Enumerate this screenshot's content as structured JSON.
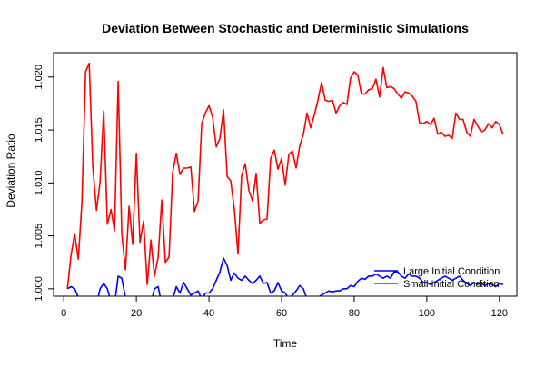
{
  "chart_data": {
    "type": "line",
    "title": "Deviation Between Stochastic and Deterministic Simulations",
    "xlabel": "Time",
    "ylabel": "Deviation Ratio",
    "xlim": [
      -2.8,
      124.8
    ],
    "ylim": [
      0.9993,
      1.0223
    ],
    "x_ticks": [
      0,
      20,
      40,
      60,
      80,
      100,
      120
    ],
    "x_tick_labels": [
      "0",
      "20",
      "40",
      "60",
      "80",
      "100",
      "120"
    ],
    "y_ticks": [
      1.0,
      1.005,
      1.01,
      1.015,
      1.02
    ],
    "y_tick_labels": [
      "1.000",
      "1.005",
      "1.010",
      "1.015",
      "1.020"
    ],
    "grid": false,
    "legend_position": "bottom-right",
    "series": [
      {
        "name": "Large Initial Condition",
        "color": "#0000ff",
        "x": [
          1,
          2,
          3,
          4,
          5,
          6,
          7,
          8,
          9,
          10,
          11,
          12,
          13,
          14,
          15,
          16,
          17,
          18,
          19,
          20,
          21,
          22,
          23,
          24,
          25,
          26,
          27,
          28,
          29,
          30,
          31,
          32,
          33,
          34,
          35,
          36,
          37,
          38,
          39,
          40,
          41,
          42,
          43,
          44,
          45,
          46,
          47,
          48,
          49,
          50,
          51,
          52,
          53,
          54,
          55,
          56,
          57,
          58,
          59,
          60,
          61,
          62,
          63,
          64,
          65,
          66,
          67,
          68,
          69,
          70,
          71,
          72,
          73,
          74,
          75,
          76,
          77,
          78,
          79,
          80,
          81,
          82,
          83,
          84,
          85,
          86,
          87,
          88,
          89,
          90,
          91,
          92,
          93,
          94,
          95,
          96,
          97,
          98,
          99,
          100,
          101,
          102,
          103,
          104,
          105,
          106,
          107,
          108,
          109,
          110,
          111,
          112,
          113,
          114,
          115,
          116,
          117,
          118,
          119,
          120,
          121
        ],
        "y": [
          1.0,
          1.0002,
          1.0,
          0.9992,
          0.9988,
          0.9984,
          0.998,
          0.9988,
          0.9985,
          1.0,
          1.0005,
          1.0,
          0.9988,
          0.9985,
          1.0012,
          1.001,
          0.9992,
          0.9988,
          0.9982,
          0.9988,
          0.9984,
          0.9988,
          0.9992,
          0.9986,
          1.0,
          1.0002,
          0.9985,
          0.9988,
          0.9986,
          0.999,
          1.0002,
          0.9996,
          1.0006,
          1.0,
          0.9994,
          0.9996,
          0.9998,
          0.999,
          0.9996,
          0.9996,
          1.0,
          1.0008,
          1.0016,
          1.0029,
          1.0022,
          1.0008,
          1.0015,
          1.001,
          1.0008,
          1.0012,
          1.0008,
          1.0005,
          1.0008,
          1.0012,
          1.0005,
          1.0006,
          0.9996,
          0.9998,
          1.0006,
          0.9998,
          0.9996,
          0.999,
          0.9994,
          0.9998,
          1.0003,
          1.0,
          0.999,
          0.9988,
          0.999,
          0.9992,
          0.9994,
          0.9996,
          0.9998,
          0.9997,
          0.9998,
          0.9998,
          1.0,
          1.0,
          1.0003,
          1.0002,
          1.0007,
          1.001,
          1.0009,
          1.0012,
          1.0012,
          1.0014,
          1.0012,
          1.001,
          1.0012,
          1.001,
          1.0016,
          1.0016,
          1.0012,
          1.001,
          1.0014,
          1.0012,
          1.0012,
          1.001,
          1.0006,
          1.0006,
          1.0004,
          1.0006,
          1.0008,
          1.001,
          1.0012,
          1.001,
          1.0008,
          1.001,
          1.0012,
          1.0008,
          1.0005,
          1.0003,
          1.0006,
          1.0004,
          1.0006,
          1.0003,
          1.0005,
          1.0004,
          1.0002,
          1.0005,
          1.0004
        ]
      },
      {
        "name": "Small Initial Condition",
        "color": "#ff0000",
        "x": [
          1,
          2,
          3,
          4,
          5,
          6,
          7,
          8,
          9,
          10,
          11,
          12,
          13,
          14,
          15,
          16,
          17,
          18,
          19,
          20,
          21,
          22,
          23,
          24,
          25,
          26,
          27,
          28,
          29,
          30,
          31,
          32,
          33,
          34,
          35,
          36,
          37,
          38,
          39,
          40,
          41,
          42,
          43,
          44,
          45,
          46,
          47,
          48,
          49,
          50,
          51,
          52,
          53,
          54,
          55,
          56,
          57,
          58,
          59,
          60,
          61,
          62,
          63,
          64,
          65,
          66,
          67,
          68,
          69,
          70,
          71,
          72,
          73,
          74,
          75,
          76,
          77,
          78,
          79,
          80,
          81,
          82,
          83,
          84,
          85,
          86,
          87,
          88,
          89,
          90,
          91,
          92,
          93,
          94,
          95,
          96,
          97,
          98,
          99,
          100,
          101,
          102,
          103,
          104,
          105,
          106,
          107,
          108,
          109,
          110,
          111,
          112,
          113,
          114,
          115,
          116,
          117,
          118,
          119,
          120,
          121
        ],
        "y": [
          1.0,
          1.0032,
          1.0052,
          1.0028,
          1.0082,
          1.0205,
          1.0213,
          1.0115,
          1.0074,
          1.0101,
          1.0168,
          1.0061,
          1.0075,
          1.0055,
          1.0196,
          1.0052,
          1.0018,
          1.0078,
          1.0042,
          1.0128,
          1.0044,
          1.0064,
          1.0004,
          1.0046,
          1.0012,
          1.003,
          1.0084,
          1.0025,
          1.003,
          1.011,
          1.0128,
          1.0108,
          1.0114,
          1.0114,
          1.0115,
          1.0073,
          1.0083,
          1.0156,
          1.0166,
          1.0173,
          1.0162,
          1.0134,
          1.0142,
          1.0169,
          1.0106,
          1.0102,
          1.0075,
          1.0033,
          1.0107,
          1.0118,
          1.0093,
          1.0083,
          1.0109,
          1.0062,
          1.0065,
          1.0066,
          1.0123,
          1.0131,
          1.0113,
          1.0123,
          1.0098,
          1.0127,
          1.013,
          1.0114,
          1.0135,
          1.0146,
          1.0166,
          1.0152,
          1.0164,
          1.0178,
          1.0195,
          1.0178,
          1.0177,
          1.0178,
          1.0166,
          1.0173,
          1.0176,
          1.0174,
          1.0199,
          1.0205,
          1.0202,
          1.0184,
          1.0184,
          1.0188,
          1.0189,
          1.0198,
          1.0181,
          1.0209,
          1.019,
          1.0191,
          1.0189,
          1.0184,
          1.018,
          1.0186,
          1.0185,
          1.0182,
          1.0177,
          1.0157,
          1.0156,
          1.0158,
          1.0155,
          1.0161,
          1.0146,
          1.0148,
          1.0144,
          1.0145,
          1.0142,
          1.0166,
          1.016,
          1.016,
          1.0148,
          1.0144,
          1.016,
          1.0154,
          1.0148,
          1.015,
          1.0156,
          1.0152,
          1.0158,
          1.0155,
          1.0146
        ]
      }
    ]
  }
}
